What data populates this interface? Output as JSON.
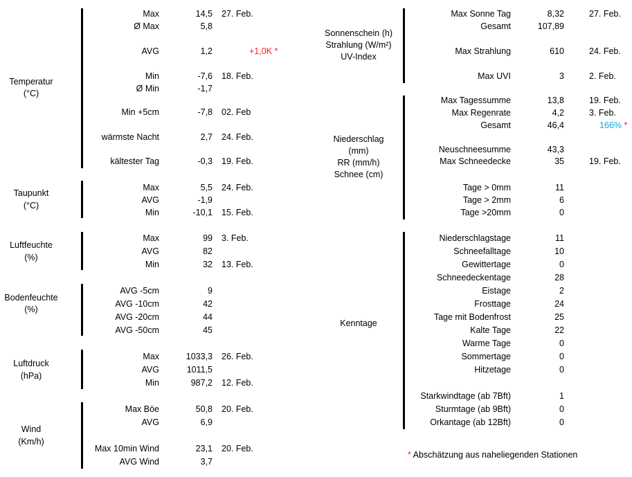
{
  "colors": {
    "warm_anomaly": "#e8202a",
    "precip_percent": "#1aa3e0",
    "asterisk": "#e8202a"
  },
  "left_sections": [
    {
      "title": [
        "Temperatur",
        "(°C)"
      ],
      "rows": [
        {
          "label": "Max",
          "value": "14,5",
          "date": "27. Feb."
        },
        {
          "label": "Ø Max",
          "value": "5,8",
          "date": ""
        },
        {
          "label": "AVG",
          "value": "1,2",
          "note": "+1,0K",
          "note_color": "red",
          "asterisk": "*"
        },
        {
          "label": "Min",
          "value": "-7,6",
          "date": "18. Feb."
        },
        {
          "label": "Ø Min",
          "value": "-1,7",
          "date": ""
        },
        {
          "label": "Min +5cm",
          "value": "-7,8",
          "date": "02. Feb"
        },
        {
          "label": "wärmste Nacht",
          "value": "2,7",
          "date": "24. Feb."
        },
        {
          "label": "kältester Tag",
          "value": "-0,3",
          "date": "19. Feb."
        }
      ]
    },
    {
      "title": [
        "Taupunkt",
        "(°C)"
      ],
      "rows": [
        {
          "label": "Max",
          "value": "5,5",
          "date": "24. Feb."
        },
        {
          "label": "AVG",
          "value": "-1,9",
          "date": ""
        },
        {
          "label": "Min",
          "value": "-10,1",
          "date": "15. Feb."
        }
      ]
    },
    {
      "title": [
        "Luftfeuchte",
        "(%)"
      ],
      "rows": [
        {
          "label": "Max",
          "value": "99",
          "date": "3. Feb."
        },
        {
          "label": "AVG",
          "value": "82",
          "date": ""
        },
        {
          "label": "Min",
          "value": "32",
          "date": "13. Feb."
        }
      ]
    },
    {
      "title": [
        "Bodenfeuchte",
        "(%)"
      ],
      "rows": [
        {
          "label": "AVG -5cm",
          "value": "9",
          "date": ""
        },
        {
          "label": "AVG -10cm",
          "value": "42",
          "date": ""
        },
        {
          "label": "AVG -20cm",
          "value": "44",
          "date": ""
        },
        {
          "label": "AVG -50cm",
          "value": "45",
          "date": ""
        }
      ]
    },
    {
      "title": [
        "Luftdruck",
        "(hPa)"
      ],
      "rows": [
        {
          "label": "Max",
          "value": "1033,3",
          "date": "26. Feb."
        },
        {
          "label": "AVG",
          "value": "1011,5",
          "date": ""
        },
        {
          "label": "Min",
          "value": "987,2",
          "date": "12. Feb."
        }
      ]
    },
    {
      "title": [
        "Wind",
        "(Km/h)"
      ],
      "rows": [
        {
          "label": "Max Böe",
          "value": "50,8",
          "date": "20. Feb."
        },
        {
          "label": "AVG",
          "value": "6,9",
          "date": ""
        },
        {
          "label": "Max 10min Wind",
          "value": "23,1",
          "date": "20. Feb."
        },
        {
          "label": "AVG Wind",
          "value": "3,7",
          "date": ""
        }
      ]
    }
  ],
  "right_sections": [
    {
      "title": [
        "Sonnenschein (h)",
        "Strahlung (W/m²)",
        "UV-Index"
      ],
      "rows": [
        {
          "label": "Max Sonne Tag",
          "value": "8,32",
          "date": "27. Feb."
        },
        {
          "label": "Gesamt",
          "value": "107,89",
          "date": ""
        },
        {
          "label": "Max Strahlung",
          "value": "610",
          "date": "24. Feb."
        },
        {
          "label": "Max UVI",
          "value": "3",
          "date": "2. Feb."
        }
      ]
    },
    {
      "title": [
        "Niederschlag",
        "(mm)",
        "RR  (mm/h)",
        "Schnee (cm)"
      ],
      "rows": [
        {
          "label": "Max Tagessumme",
          "value": "13,8",
          "date": "19. Feb."
        },
        {
          "label": "Max Regenrate",
          "value": "4,2",
          "date": "3. Feb."
        },
        {
          "label": "Gesamt",
          "value": "46,4",
          "note": "166%",
          "note_color": "blue",
          "asterisk": "*"
        },
        {
          "label": "Neuschneesumme",
          "value": "43,3",
          "date": ""
        },
        {
          "label": "Max Schneedecke",
          "value": "35",
          "date": "19. Feb."
        },
        {
          "label": "Tage > 0mm",
          "value": "11",
          "date": ""
        },
        {
          "label": "Tage > 2mm",
          "value": "6",
          "date": ""
        },
        {
          "label": "Tage >20mm",
          "value": "0",
          "date": ""
        }
      ]
    },
    {
      "title": [
        "Kenntage"
      ],
      "rows": [
        {
          "label": "Niederschlagstage",
          "value": "11"
        },
        {
          "label": "Schneefalltage",
          "value": "10"
        },
        {
          "label": "Gewittertage",
          "value": "0"
        },
        {
          "label": "Schneedeckentage",
          "value": "28"
        },
        {
          "label": "Eistage",
          "value": "2"
        },
        {
          "label": "Frosttage",
          "value": "24"
        },
        {
          "label": "Tage mit Bodenfrost",
          "value": "25"
        },
        {
          "label": "Kalte Tage",
          "value": "22"
        },
        {
          "label": "Warme Tage",
          "value": "0"
        },
        {
          "label": "Sommertage",
          "value": "0"
        },
        {
          "label": "Hitzetage",
          "value": "0"
        },
        {
          "label": "Starkwindtage (ab 7Bft)",
          "value": "1"
        },
        {
          "label": "Sturmtage (ab 9Bft)",
          "value": "0"
        },
        {
          "label": "Orkantage (ab 12Bft)",
          "value": "0"
        }
      ]
    }
  ],
  "footnote": {
    "asterisk": "*",
    "text": "Abschätzung aus naheliegenden Stationen"
  }
}
